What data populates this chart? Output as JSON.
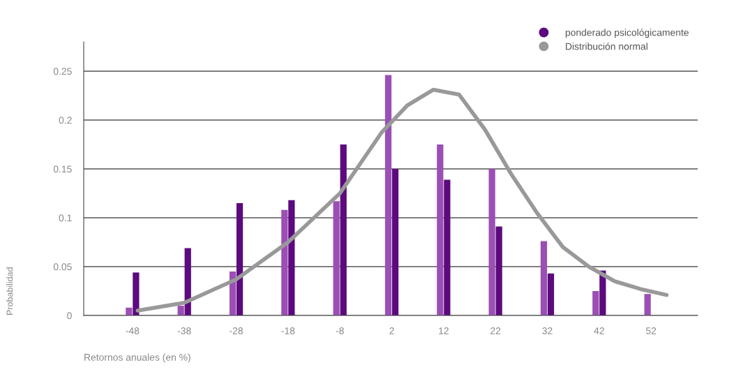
{
  "chart_data": {
    "type": "bar",
    "xlabel": "Retornos anuales (en %)",
    "ylabel": "Probabilidad",
    "x": [
      -48,
      -38,
      -28,
      -18,
      -8,
      2,
      12,
      22,
      32,
      42,
      52
    ],
    "series": [
      {
        "color": "#9b4fb4",
        "values": [
          0.008,
          0.01,
          0.045,
          0.108,
          0.117,
          0.246,
          0.175,
          0.15,
          0.076,
          0.025,
          0.022
        ]
      },
      {
        "name": "ponderado psicológicamente",
        "color": "#5c0a7e",
        "values": [
          0.044,
          0.069,
          0.115,
          0.118,
          0.175,
          0.15,
          0.139,
          0.091,
          0.043,
          0.046,
          null
        ]
      },
      {
        "name": "Distribución normal",
        "type": "line",
        "color": "#999999",
        "x": [
          -47,
          -38,
          -28,
          -18,
          -8,
          0,
          5,
          10,
          15,
          20,
          25,
          30,
          35,
          40,
          45,
          50,
          55
        ],
        "values": [
          0.005,
          0.013,
          0.037,
          0.075,
          0.125,
          0.187,
          0.215,
          0.231,
          0.226,
          0.19,
          0.145,
          0.105,
          0.07,
          0.05,
          0.035,
          0.027,
          0.021
        ]
      }
    ],
    "xlim": [
      -57.4,
      61
    ],
    "xticks": [
      -48,
      -38,
      -28,
      -18,
      -8,
      2,
      12,
      22,
      32,
      42,
      52
    ],
    "ylim": [
      0,
      0.28
    ],
    "yticks": [
      0,
      0.05,
      0.1,
      0.15,
      0.2,
      0.25
    ],
    "grid": "y",
    "legend": "top right"
  }
}
